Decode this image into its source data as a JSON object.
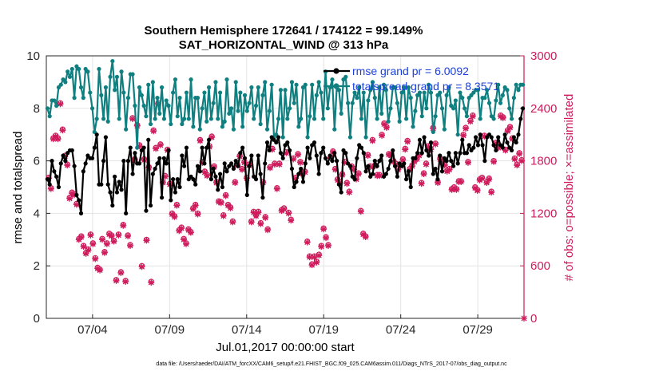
{
  "chart_data": {
    "type": "line",
    "title_line1": "Southern Hemisphere 172641 / 174122 = 99.149%",
    "title_line2": "SAT_HORIZONTAL_WIND @ 313 hPa",
    "xlabel": "Jul.01,2017 00:00:00 start",
    "ylabel_left": "rmse and totalspread",
    "ylabel_right": "# of obs: o=possible; ×=assimilated",
    "footnote": "data file: /Users/raeder/DAI/ATM_forcXX/CAM6_setup/f.e21.FHIST_BGC.f09_025.CAM6assim.011/Diags_NTrS_2017-07/obs_diag_output.nc",
    "x_ticks": [
      "07/04",
      "07/09",
      "07/14",
      "07/19",
      "07/24",
      "07/29"
    ],
    "x_tick_days": [
      4,
      9,
      14,
      19,
      24,
      29
    ],
    "xlim": [
      1.0,
      32.0
    ],
    "y_left_ticks": [
      "0",
      "2",
      "4",
      "6",
      "8",
      "10"
    ],
    "ylim_left": [
      0,
      10
    ],
    "y_right_ticks": [
      "0",
      "600",
      "1200",
      "1800",
      "2400",
      "3000"
    ],
    "ylim_right": [
      0,
      3000
    ],
    "grid": true,
    "legend_position": "top-right",
    "colors": {
      "rmse": "#000000",
      "spread": "#0f7f80",
      "obs": "#cf1b5c",
      "legend_text": "#1a3fe0"
    },
    "series": [
      {
        "name": "rmse grand pr = 6.0092",
        "axis": "left",
        "values": [
          5.3,
          5.1,
          6.0,
          5.6,
          5.4,
          5.0,
          5.9,
          6.2,
          6.0,
          6.3,
          6.4,
          6.4,
          5.8,
          4.7,
          4.5,
          4.0,
          5.6,
          5.9,
          6.2,
          6.1,
          6.1,
          6.5,
          7.0,
          5.1,
          5.1,
          6.0,
          6.9,
          5.1,
          4.8,
          4.3,
          5.4,
          4.8,
          5.2,
          4.9,
          6.0,
          4.0,
          6.0,
          6.5,
          5.5,
          6.3,
          5.9,
          5.9,
          6.4,
          6.5,
          4.1,
          6.8,
          4.3,
          5.5,
          5.7,
          5.9,
          6.1,
          4.6,
          6.1,
          5.9,
          6.4,
          4.5,
          5.3,
          4.8,
          5.3,
          5.0,
          6.2,
          5.8,
          6.5,
          5.3,
          5.4,
          5.3,
          5.1,
          5.8,
          5.6,
          6.5,
          5.9,
          6.5,
          6.8,
          5.3,
          5.7,
          5.4,
          4.9,
          5.5,
          5.0,
          5.9,
          5.6,
          5.8,
          5.9,
          5.7,
          6.0,
          5.8,
          6.3,
          6.5,
          6.1,
          4.7,
          5.8,
          6.2,
          5.4,
          5.3,
          6.2,
          5.5,
          4.6,
          5.9,
          6.7,
          6.4,
          6.9,
          6.8,
          6.7,
          6.9,
          6.3,
          6.1,
          6.6,
          6.7,
          6.4,
          5.7,
          5.0,
          5.2,
          5.5,
          5.7,
          5.2,
          5.9,
          6.5,
          6.1,
          6.6,
          6.7,
          6.2,
          5.5,
          6.3,
          6.5,
          6.1,
          5.9,
          6.2,
          6.0,
          6.3,
          6.0,
          5.1,
          4.8,
          6.4,
          6.3,
          5.9,
          5.8,
          5.4,
          5.3,
          6.1,
          6.6,
          6.5,
          6.3,
          5.6,
          5.8,
          5.4,
          5.5,
          6.0,
          5.8,
          6.0,
          6.2,
          5.4,
          5.5,
          5.7,
          6.0,
          6.4,
          5.8,
          5.4,
          5.9,
          5.8,
          5.9,
          5.3,
          5.6,
          5.0,
          6.1,
          6.1,
          6.3,
          6.8,
          6.3,
          6.9,
          6.4,
          6.2,
          6.7,
          5.5,
          5.7,
          5.3,
          6.2,
          5.6,
          6.1,
          6.0,
          6.3,
          6.0,
          5.8,
          6.3,
          5.9,
          6.3,
          6.8,
          6.3,
          6.3,
          6.6,
          6.4,
          6.5,
          6.9,
          6.6,
          7.0,
          6.6,
          6.0,
          6.9,
          7.0,
          6.9,
          6.6,
          6.4,
          6.9,
          6.6,
          6.5,
          7.0,
          6.7,
          6.5,
          6.4,
          6.9,
          6.7,
          7.0,
          7.6,
          8.0
        ]
      },
      {
        "name": "totalspread grand pr = 8.3571",
        "axis": "left",
        "values": [
          8.0,
          7.7,
          8.3,
          8.3,
          8.1,
          8.8,
          8.9,
          9.1,
          9.0,
          9.4,
          9.2,
          9.5,
          8.4,
          9.6,
          9.5,
          8.8,
          8.4,
          9.5,
          9.4,
          8.6,
          8.0,
          7.1,
          7.6,
          9.5,
          8.5,
          7.6,
          8.8,
          7.5,
          9.2,
          9.8,
          8.7,
          9.2,
          7.6,
          9.4,
          8.6,
          7.2,
          8.4,
          9.3,
          9.3,
          8.1,
          6.5,
          8.8,
          8.5,
          8.1,
          7.7,
          8.9,
          7.4,
          9.0,
          7.6,
          8.4,
          7.8,
          8.8,
          7.6,
          8.3,
          8.1,
          7.4,
          8.6,
          9.1,
          7.7,
          8.4,
          7.4,
          7.6,
          8.6,
          7.6,
          9.1,
          7.3,
          8.4,
          8.4,
          7.2,
          8.0,
          8.6,
          7.5,
          8.8,
          7.6,
          8.2,
          9.0,
          7.6,
          8.6,
          7.3,
          7.5,
          9.1,
          7.8,
          8.0,
          7.2,
          9.0,
          7.9,
          8.6,
          7.3,
          8.5,
          7.9,
          8.2,
          8.8,
          7.6,
          8.1,
          8.8,
          7.4,
          8.5,
          9.0,
          7.2,
          7.9,
          8.9,
          6.9,
          7.0,
          7.6,
          8.7,
          6.9,
          8.7,
          7.6,
          8.0,
          9.0,
          8.2,
          8.9,
          7.3,
          7.6,
          8.8,
          8.9,
          6.9,
          7.7,
          8.9,
          7.6,
          8.5,
          9.0,
          8.6,
          7.6,
          9.4,
          8.0,
          8.8,
          9.1,
          7.2,
          8.8,
          8.7,
          7.8,
          9.1,
          9.2,
          8.2,
          6.9,
          8.2,
          8.6,
          8.4,
          8.8,
          7.6,
          8.6,
          6.9,
          8.3,
          8.7,
          9.0,
          8.4,
          7.6,
          8.8,
          7.8,
          8.9,
          8.7,
          7.5,
          8.0,
          8.8,
          8.8,
          8.2,
          7.5,
          8.6,
          8.8,
          7.6,
          8.8,
          8.4,
          7.3,
          7.9,
          8.5,
          8.6,
          7.7,
          8.6,
          8.0,
          8.9,
          8.6,
          7.1,
          7.7,
          8.5,
          8.6,
          8.0,
          7.2,
          8.5,
          8.8,
          8.1,
          8.0,
          8.3,
          7.0,
          8.6,
          8.4,
          8.0,
          7.7,
          8.4,
          8.5,
          8.6,
          8.7,
          8.7,
          7.6,
          8.4,
          8.4,
          8.7,
          8.2,
          7.7,
          7.6,
          8.3,
          8.9,
          8.2,
          8.5,
          8.8,
          8.7,
          8.0,
          7.6,
          8.4,
          8.9,
          8.7,
          8.9,
          8.9
        ]
      },
      {
        "name": "obs assimilated",
        "axis": "right",
        "values": [
          1600,
          1480,
          2050,
          2080,
          2050,
          2450,
          2150,
          1850,
          1750,
          1370,
          1430,
          1410,
          1300,
          900,
          930,
          820,
          740,
          780,
          950,
          850,
          680,
          570,
          550,
          900,
          750,
          850,
          960,
          940,
          880,
          430,
          950,
          520,
          1060,
          420,
          940,
          830,
          2280,
          1810,
          2200,
          1970,
          590,
          1810,
          890,
          1720,
          410,
          2140,
          1940,
          2450,
          1980,
          1550,
          1620,
          1920,
          1530,
          1190,
          1160,
          1290,
          1000,
          1030,
          900,
          850,
          1010,
          980,
          1250,
          1290,
          1190,
          2030,
          1780,
          1670,
          1630,
          1960,
          2070,
          1730,
          1550,
          1330,
          1320,
          1170,
          1400,
          1290,
          1260,
          1100,
          1550,
          1750,
          1850,
          1700,
          1780,
          1600,
          1750,
          1100,
          1210,
          1170,
          1210,
          1080,
          1550,
          1150,
          1010,
          1720,
          1930,
          1760,
          1480,
          1760,
          1230,
          1250,
          1890,
          1200,
          1120,
          1820,
          1600,
          1870,
          1780,
          1650,
          1670,
          870,
          700,
          610,
          700,
          640,
          720,
          820,
          1020,
          920,
          830,
          1830,
          1900,
          1700,
          1580,
          1550,
          1640,
          1780,
          1540,
          1440,
          1730,
          1700,
          1590,
          1650,
          1220,
          960,
          930,
          1860,
          1730,
          2030,
          1740,
          1630,
          1630,
          2090,
          2220,
          2180,
          1870,
          1860,
          1790,
          1760,
          1700,
          1740,
          1810,
          1930,
          2020,
          1700,
          1740,
          1790,
          1820,
          1860,
          1540,
          1650,
          1760,
          1960,
          1930,
          2170,
          1990,
          1550,
          1820,
          1780,
          1750,
          1680,
          1700,
          1470,
          1490,
          1470,
          1560,
          1560,
          2090,
          2170,
          1780,
          2250,
          2310,
          1490,
          1460,
          1580,
          1600,
          2080,
          1550,
          1590,
          1440,
          1790,
          2000,
          1950,
          2310,
          2290,
          1920,
          2140,
          2180,
          2050,
          1820,
          1750,
          1880,
          1800,
          0
        ]
      },
      {
        "name": "obs possible",
        "axis": "right",
        "values": [
          1610,
          1490,
          2060,
          2090,
          2060,
          2460,
          2160,
          1860,
          1760,
          1380,
          1440,
          1420,
          1310,
          910,
          940,
          830,
          750,
          790,
          960,
          860,
          690,
          580,
          560,
          910,
          760,
          860,
          970,
          950,
          890,
          440,
          960,
          530,
          1070,
          430,
          950,
          840,
          2290,
          1820,
          2210,
          1980,
          600,
          1820,
          900,
          1730,
          420,
          2150,
          1950,
          2460,
          1990,
          1560,
          1630,
          1930,
          1540,
          1200,
          1170,
          1300,
          1010,
          1040,
          910,
          860,
          1020,
          990,
          1260,
          1300,
          1200,
          2040,
          1790,
          1680,
          1640,
          1970,
          2080,
          1740,
          1560,
          1340,
          1330,
          1180,
          1410,
          1300,
          1270,
          1110,
          1560,
          1760,
          1860,
          1710,
          1790,
          1610,
          1760,
          1110,
          1220,
          1180,
          1220,
          1090,
          1560,
          1160,
          1020,
          1730,
          1940,
          1770,
          1490,
          1770,
          1240,
          1260,
          1900,
          1210,
          1130,
          1830,
          1610,
          1880,
          1790,
          1660,
          1680,
          880,
          710,
          620,
          710,
          650,
          730,
          830,
          1030,
          930,
          840,
          1840,
          1910,
          1710,
          1590,
          1560,
          1650,
          1790,
          1550,
          1450,
          1740,
          1710,
          1600,
          1660,
          1230,
          970,
          940,
          1870,
          1740,
          2040,
          1750,
          1640,
          1640,
          2100,
          2230,
          2190,
          1880,
          1870,
          1800,
          1770,
          1710,
          1750,
          1820,
          1940,
          2030,
          1710,
          1750,
          1800,
          1830,
          1870,
          1550,
          1660,
          1770,
          1970,
          1940,
          2180,
          2000,
          1560,
          1830,
          1790,
          1760,
          1690,
          1710,
          1480,
          1500,
          1480,
          1570,
          1570,
          2100,
          2180,
          1790,
          2260,
          2320,
          1500,
          1470,
          1590,
          1610,
          2090,
          1560,
          1600,
          1450,
          1800,
          2010,
          1960,
          2320,
          2300,
          1930,
          2150,
          2190,
          2060,
          1830,
          1760,
          1890,
          1810,
          0
        ]
      }
    ]
  }
}
